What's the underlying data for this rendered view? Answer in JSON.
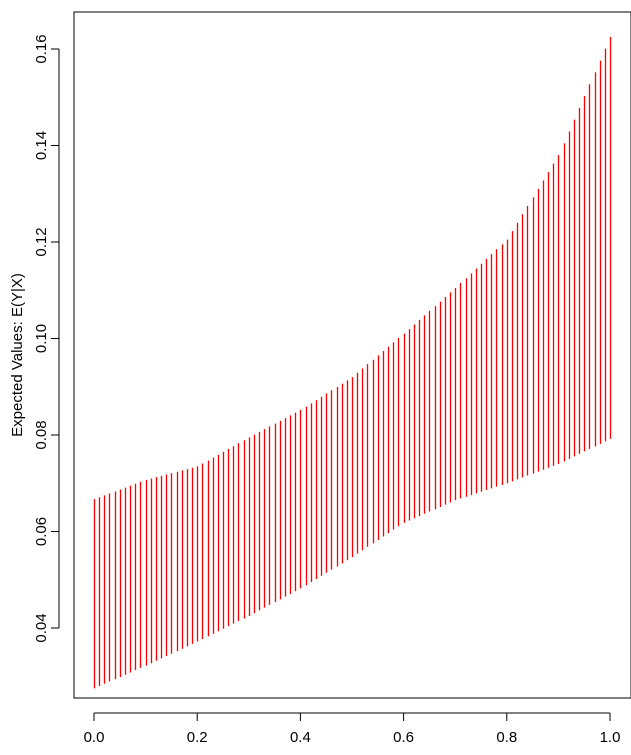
{
  "chart_data": {
    "type": "interval",
    "title": "",
    "xlabel": "",
    "ylabel": "Expected Values: E(Y|X)",
    "xlim": [
      0.0,
      1.0
    ],
    "ylim": [
      0.026,
      0.168
    ],
    "x_ticks": [
      {
        "value": 0.0,
        "label": "0.0"
      },
      {
        "value": 0.2,
        "label": "0.2"
      },
      {
        "value": 0.4,
        "label": "0.4"
      },
      {
        "value": 0.6,
        "label": "0.6"
      },
      {
        "value": 0.8,
        "label": "0.8"
      },
      {
        "value": 1.0,
        "label": "1.0"
      }
    ],
    "y_ticks": [
      {
        "value": 0.04,
        "label": "0.04"
      },
      {
        "value": 0.06,
        "label": "0.06"
      },
      {
        "value": 0.08,
        "label": "0.08"
      },
      {
        "value": 0.1,
        "label": "0.10"
      },
      {
        "value": 0.12,
        "label": "0.12"
      },
      {
        "value": 0.14,
        "label": "0.14"
      },
      {
        "value": 0.16,
        "label": "0.16"
      }
    ],
    "grid": false,
    "bar_color": "#ff0000",
    "series": [
      {
        "x": [
          0.0,
          0.1,
          0.2,
          0.3,
          0.4,
          0.5,
          0.6,
          0.7,
          0.8,
          0.9,
          1.0
        ],
        "lower": [
          0.0275,
          0.0322,
          0.0372,
          0.0425,
          0.0482,
          0.0547,
          0.0618,
          0.0665,
          0.07,
          0.074,
          0.0792
        ],
        "upper": [
          0.0667,
          0.0707,
          0.0735,
          0.0795,
          0.0852,
          0.092,
          0.101,
          0.1105,
          0.1205,
          0.138,
          0.1625
        ]
      }
    ]
  }
}
